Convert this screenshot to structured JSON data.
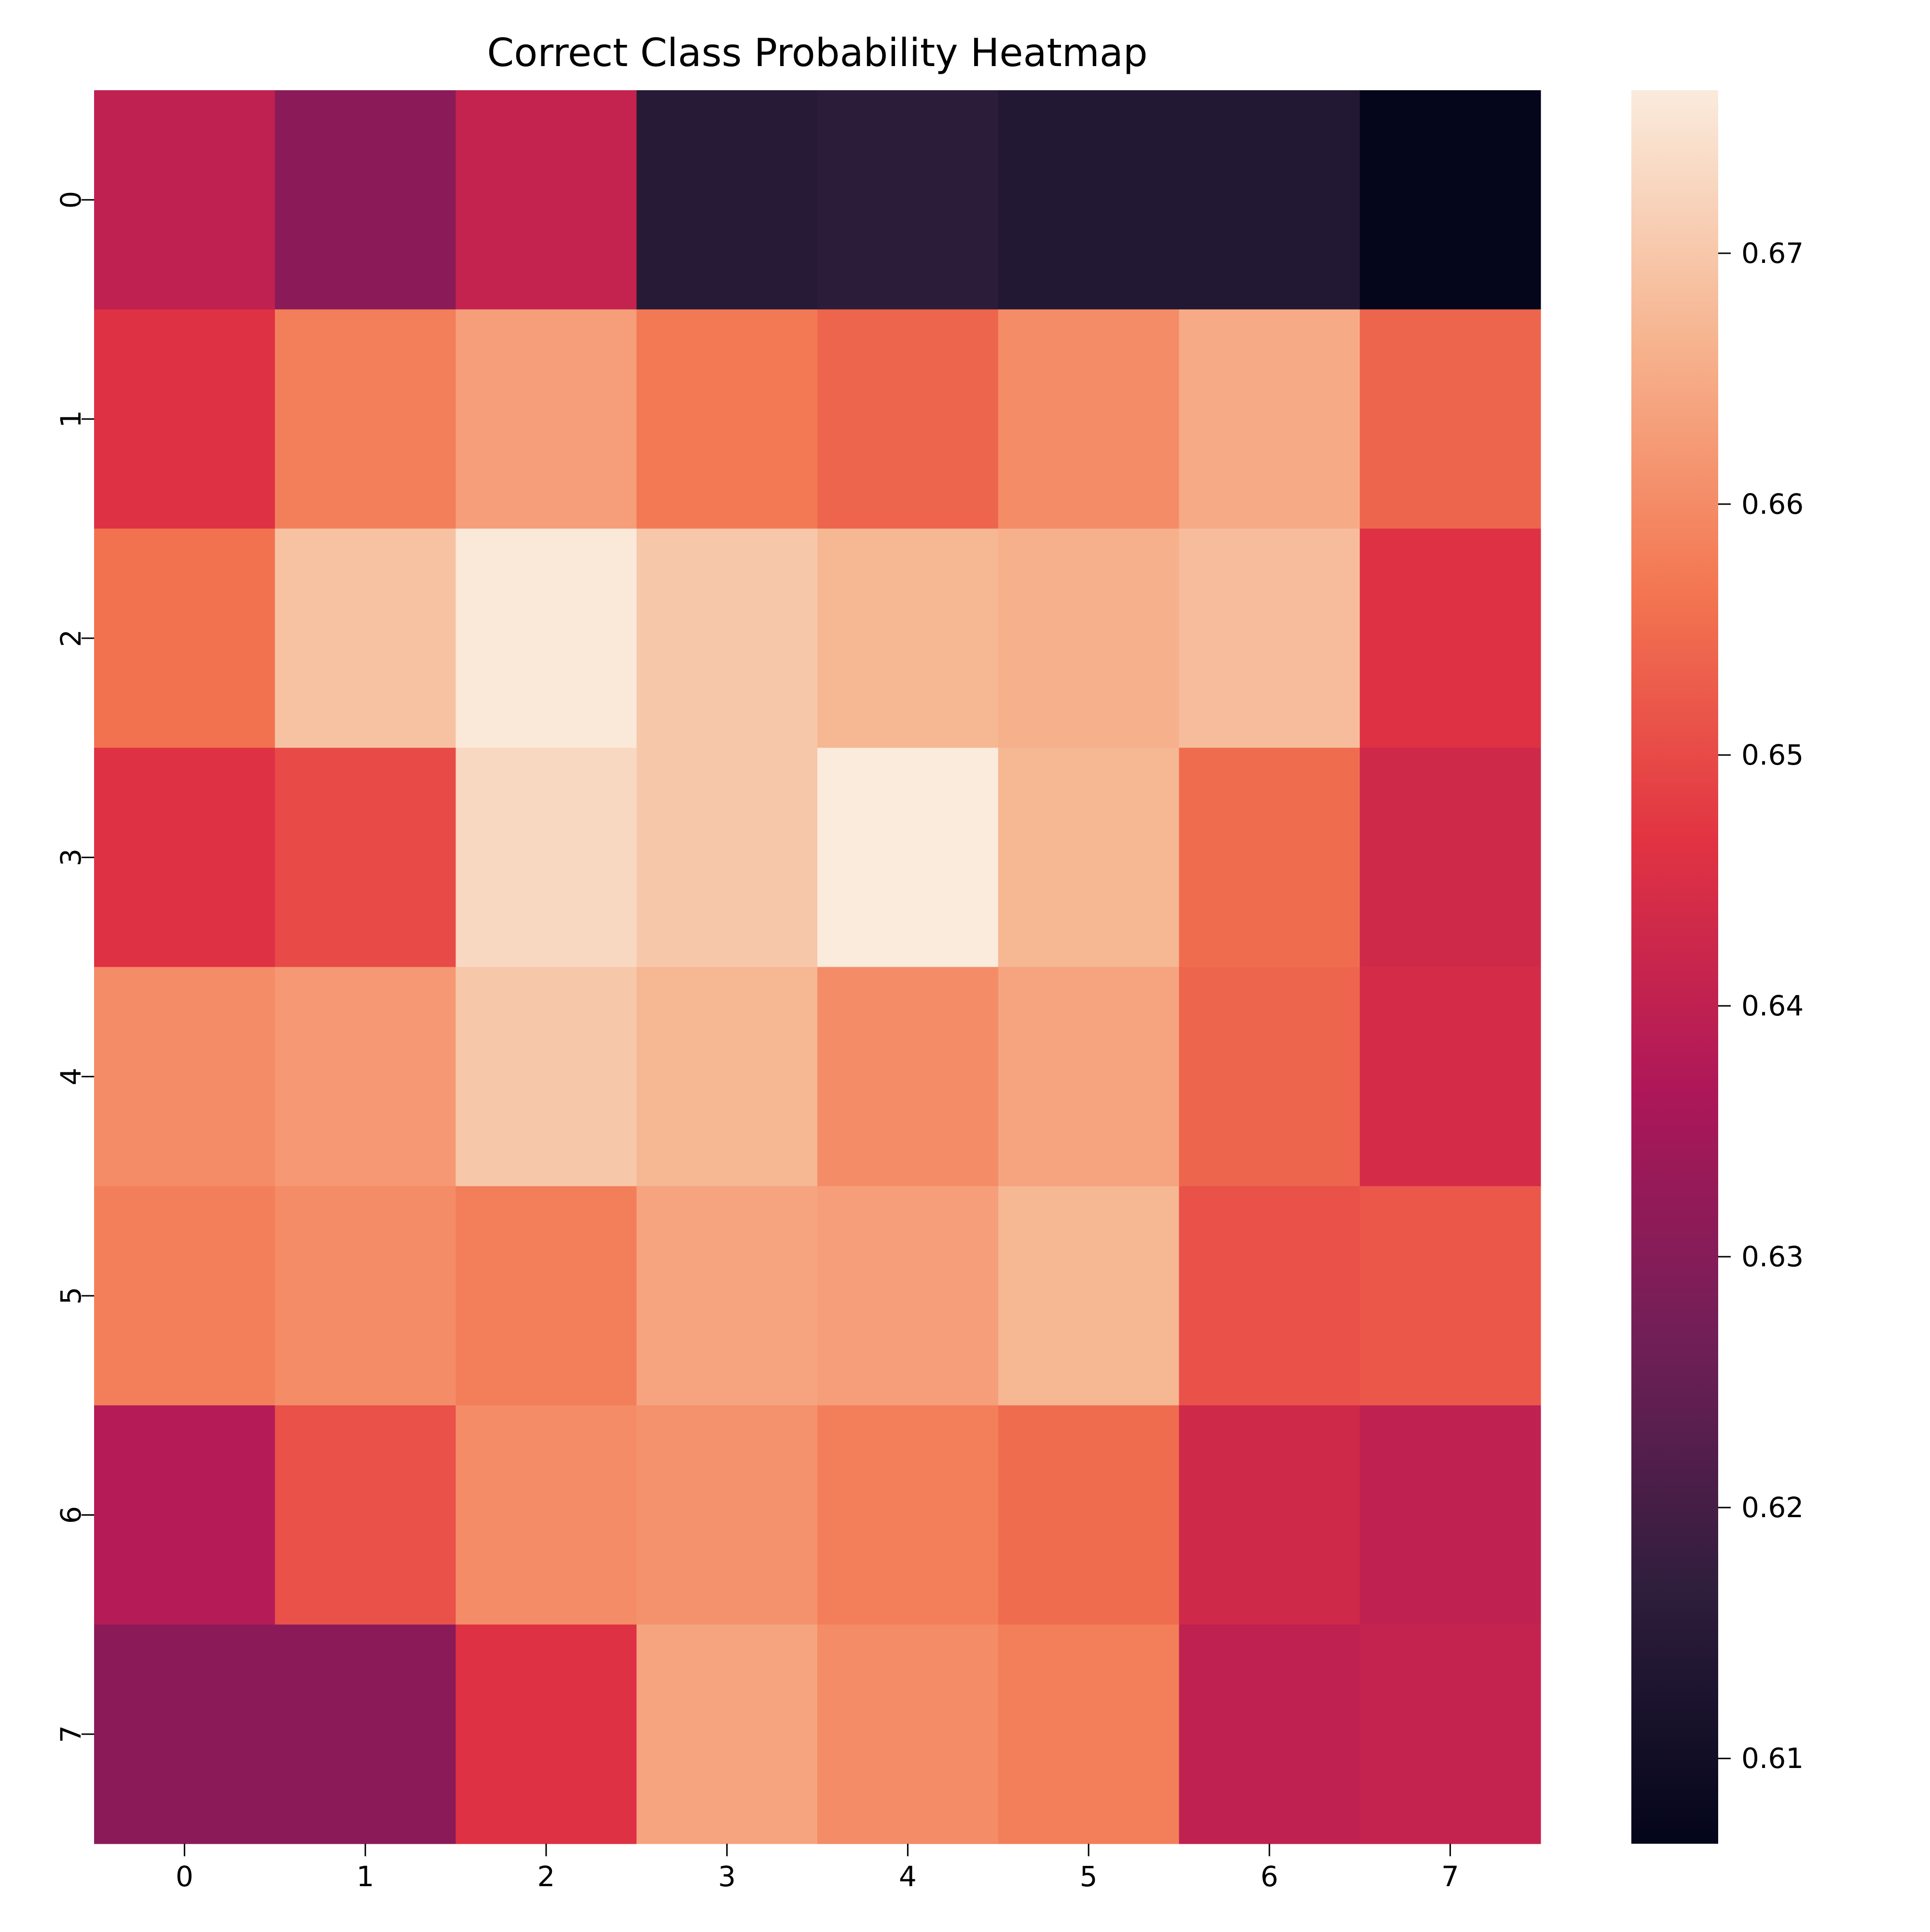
{
  "chart_data": {
    "type": "heatmap",
    "title": "Correct Class Probability Heatmap",
    "xlabel": "",
    "ylabel": "",
    "x_categories": [
      "0",
      "1",
      "2",
      "3",
      "4",
      "5",
      "6",
      "7"
    ],
    "y_categories": [
      "0",
      "1",
      "2",
      "3",
      "4",
      "5",
      "6",
      "7"
    ],
    "values": [
      [
        0.64,
        0.631,
        0.641,
        0.615,
        0.616,
        0.614,
        0.614,
        0.607
      ],
      [
        0.646,
        0.658,
        0.663,
        0.657,
        0.654,
        0.66,
        0.665,
        0.654
      ],
      [
        0.656,
        0.669,
        0.676,
        0.67,
        0.667,
        0.666,
        0.668,
        0.646
      ],
      [
        0.646,
        0.65,
        0.673,
        0.67,
        0.677,
        0.667,
        0.655,
        0.643
      ],
      [
        0.66,
        0.662,
        0.67,
        0.667,
        0.66,
        0.664,
        0.654,
        0.644
      ],
      [
        0.658,
        0.66,
        0.658,
        0.664,
        0.663,
        0.667,
        0.651,
        0.652
      ],
      [
        0.638,
        0.651,
        0.66,
        0.661,
        0.658,
        0.655,
        0.643,
        0.64
      ],
      [
        0.631,
        0.631,
        0.646,
        0.664,
        0.66,
        0.658,
        0.64,
        0.641
      ]
    ],
    "colorbar": {
      "min": 0.6066,
      "max": 0.6765,
      "ticks": [
        0.61,
        0.62,
        0.63,
        0.64,
        0.65,
        0.66,
        0.67
      ],
      "tick_labels": [
        "0.61",
        "0.62",
        "0.63",
        "0.64",
        "0.65",
        "0.66",
        "0.67"
      ]
    },
    "colormap": "rocket",
    "colormap_stops": [
      "#03051a",
      "#2e1e3c",
      "#701f57",
      "#ad1759",
      "#e13342",
      "#f37651",
      "#f6b48f",
      "#faebdd"
    ],
    "grid": false,
    "legend": "colorbar-right"
  }
}
